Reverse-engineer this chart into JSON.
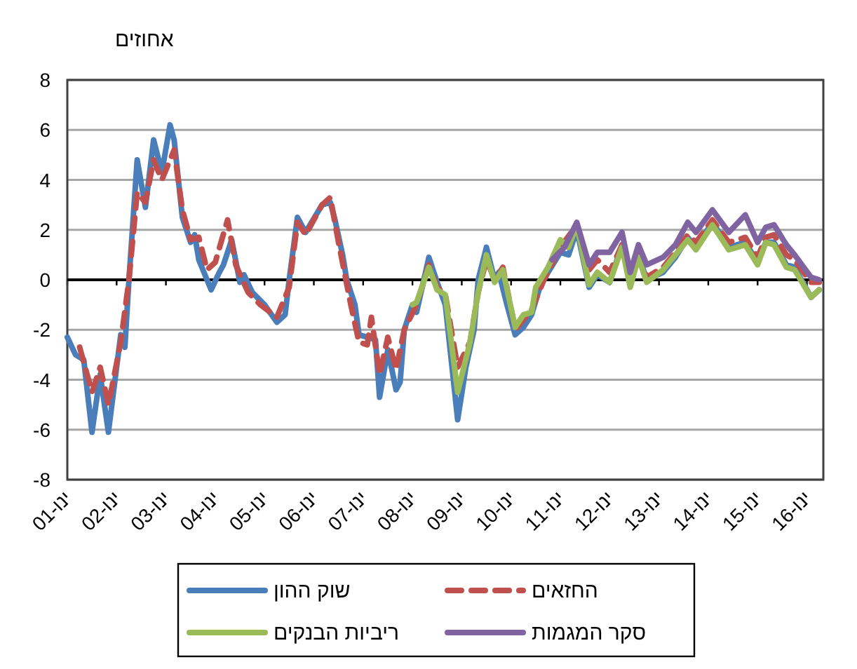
{
  "chart_data": {
    "type": "line",
    "ylabel": "אחוזים",
    "xlim": [
      "2001-01",
      "2016-05"
    ],
    "xticks": [
      {
        "value": "2001-01",
        "label": "ינו-01"
      },
      {
        "value": "2002-01",
        "label": "ינו-02"
      },
      {
        "value": "2003-01",
        "label": "ינו-03"
      },
      {
        "value": "2004-01",
        "label": "ינו-04"
      },
      {
        "value": "2005-01",
        "label": "ינו-05"
      },
      {
        "value": "2006-01",
        "label": "ינו-06"
      },
      {
        "value": "2007-01",
        "label": "ינו-07"
      },
      {
        "value": "2008-01",
        "label": "ינו-08"
      },
      {
        "value": "2009-01",
        "label": "ינו-09"
      },
      {
        "value": "2010-01",
        "label": "ינו-10"
      },
      {
        "value": "2011-01",
        "label": "ינו-11"
      },
      {
        "value": "2012-01",
        "label": "ינו-12"
      },
      {
        "value": "2013-01",
        "label": "ינו-13"
      },
      {
        "value": "2014-01",
        "label": "ינו-14"
      },
      {
        "value": "2015-01",
        "label": "ינו-15"
      },
      {
        "value": "2016-01",
        "label": "ינו-16"
      }
    ],
    "ylim": [
      -8,
      8
    ],
    "yticks": [
      -8,
      -6,
      -4,
      -2,
      0,
      2,
      4,
      6,
      8
    ],
    "grid": "y",
    "legend": "bottom",
    "series": [
      {
        "name": "שוק ההון",
        "color": "#4a7ebb",
        "line_style": "solid",
        "x": [
          "2001-01",
          "2001-03",
          "2001-05",
          "2001-07",
          "2001-09",
          "2001-11",
          "2002-02",
          "2002-03",
          "2002-04",
          "2002-06",
          "2002-08",
          "2002-10",
          "2002-12",
          "2003-02",
          "2003-03",
          "2003-05",
          "2003-07",
          "2003-08",
          "2003-09",
          "2003-12",
          "2004-02",
          "2004-03",
          "2004-05",
          "2004-07",
          "2004-08",
          "2004-10",
          "2005-01",
          "2005-04",
          "2005-06",
          "2005-07",
          "2005-09",
          "2005-11",
          "2006-03",
          "2006-05",
          "2006-06",
          "2006-08",
          "2006-09",
          "2006-11",
          "2006-12",
          "2007-02",
          "2007-04",
          "2007-05",
          "2007-07",
          "2007-09",
          "2007-10",
          "2007-11",
          "2008-01",
          "2008-02",
          "2008-05",
          "2008-07",
          "2008-09",
          "2008-12",
          "2009-02",
          "2009-04",
          "2009-05",
          "2009-07",
          "2009-09",
          "2009-10",
          "2009-12",
          "2010-02",
          "2010-04",
          "2010-06",
          "2010-08",
          "2010-10",
          "2011-01",
          "2011-03",
          "2011-05",
          "2011-08",
          "2011-10",
          "2012-01",
          "2012-04",
          "2012-06",
          "2012-08",
          "2012-10",
          "2013-02",
          "2013-05",
          "2013-08",
          "2013-10",
          "2014-02",
          "2014-06",
          "2014-10",
          "2015-01",
          "2015-03",
          "2015-05",
          "2015-08",
          "2015-10",
          "2016-02",
          "2016-04"
        ],
        "values": [
          -2.3,
          -3.0,
          -3.2,
          -6.1,
          -3.8,
          -6.1,
          -2.2,
          -2.7,
          0,
          4.8,
          2.9,
          5.6,
          4.3,
          6.2,
          5.6,
          2.5,
          1.5,
          1.8,
          0.8,
          -0.4,
          0.3,
          0.6,
          1.6,
          -0.1,
          0.2,
          -0.5,
          -1.0,
          -1.7,
          -1.4,
          0,
          2.5,
          1.9,
          3.0,
          3.1,
          2.5,
          1.0,
          0,
          -1.0,
          -2.2,
          -2.3,
          -2.4,
          -4.7,
          -2.8,
          -4.4,
          -4.1,
          -2.0,
          -1.0,
          -1.3,
          0.9,
          -0.1,
          -1.0,
          -5.6,
          -3.5,
          -2.0,
          0,
          1.3,
          0.0,
          0.3,
          -1.0,
          -2.2,
          -1.9,
          -1.4,
          -0.3,
          0.3,
          1.1,
          1.0,
          2.0,
          -0.3,
          0.2,
          -0.1,
          1.4,
          -0.2,
          1.0,
          0.0,
          0.3,
          0.9,
          1.7,
          1.3,
          2.3,
          1.3,
          1.5,
          0.7,
          1.5,
          1.5,
          0.6,
          0.5,
          -0.7,
          -0.4
        ]
      },
      {
        "name": "החזאים",
        "color": "#c0504d",
        "line_style": "dashed",
        "x": [
          "2001-04",
          "2001-07",
          "2001-09",
          "2001-11",
          "2002-02",
          "2002-04",
          "2002-06",
          "2002-08",
          "2002-10",
          "2002-12",
          "2003-03",
          "2003-05",
          "2003-07",
          "2003-09",
          "2003-11",
          "2004-01",
          "2004-04",
          "2004-06",
          "2004-09",
          "2004-12",
          "2005-04",
          "2005-07",
          "2005-09",
          "2005-11",
          "2006-03",
          "2006-05",
          "2006-07",
          "2006-10",
          "2006-12",
          "2007-02",
          "2007-03",
          "2007-05",
          "2007-07",
          "2007-09",
          "2007-11",
          "2008-02",
          "2008-05",
          "2008-07",
          "2008-09",
          "2008-12",
          "2009-03",
          "2009-05",
          "2009-07",
          "2009-09",
          "2009-11",
          "2010-02",
          "2010-06",
          "2010-09",
          "2011-01",
          "2011-05",
          "2011-08",
          "2011-10",
          "2012-01",
          "2012-04",
          "2012-06",
          "2012-08",
          "2012-10",
          "2013-02",
          "2013-05",
          "2013-08",
          "2013-10",
          "2014-02",
          "2014-06",
          "2014-10",
          "2015-01",
          "2015-03",
          "2015-05",
          "2015-08",
          "2015-10",
          "2016-02",
          "2016-04"
        ],
        "values": [
          -2.7,
          -4.5,
          -3.5,
          -5.0,
          -2.5,
          0,
          3.5,
          3.1,
          4.8,
          4.0,
          5.2,
          2.8,
          1.6,
          1.7,
          0.4,
          0.7,
          2.4,
          0.6,
          -0.5,
          -1.0,
          -1.5,
          -0.3,
          2.3,
          1.8,
          3.0,
          3.3,
          1.5,
          -1.0,
          -2.5,
          -2.6,
          -1.5,
          -3.8,
          -2.3,
          -3.6,
          -2.0,
          -1.0,
          0.6,
          -0.3,
          -0.6,
          -3.5,
          -2.5,
          -0.5,
          0.8,
          0.0,
          0.5,
          -2.0,
          -1.2,
          0.0,
          1.3,
          2.2,
          0.4,
          0.8,
          0.3,
          1.4,
          0.0,
          1.0,
          0.1,
          0.5,
          1.1,
          1.8,
          1.5,
          2.4,
          1.5,
          1.7,
          0.9,
          1.7,
          1.8,
          1.0,
          0.8,
          -0.1,
          -0.1
        ]
      },
      {
        "name": "ריביות הבנקים",
        "color": "#9bbb59",
        "line_style": "solid",
        "x": [
          "2008-01",
          "2008-02",
          "2008-05",
          "2008-07",
          "2008-09",
          "2008-12",
          "2009-03",
          "2009-05",
          "2009-07",
          "2009-09",
          "2009-11",
          "2010-02",
          "2010-04",
          "2010-06",
          "2010-07",
          "2010-10",
          "2011-01",
          "2011-03",
          "2011-05",
          "2011-08",
          "2011-10",
          "2012-01",
          "2012-04",
          "2012-06",
          "2012-08",
          "2012-10",
          "2013-02",
          "2013-05",
          "2013-08",
          "2013-10",
          "2014-02",
          "2014-06",
          "2014-10",
          "2015-01",
          "2015-03",
          "2015-05",
          "2015-08",
          "2015-10",
          "2016-02",
          "2016-04"
        ],
        "values": [
          -1.0,
          -0.9,
          0.5,
          -0.4,
          -0.6,
          -4.5,
          -2.5,
          -0.5,
          1.0,
          -0.1,
          0.4,
          -1.9,
          -1.4,
          -1.3,
          -0.3,
          0.5,
          1.6,
          1.3,
          2.2,
          -0.2,
          0.3,
          -0.1,
          1.3,
          -0.3,
          0.9,
          -0.1,
          0.4,
          1.0,
          1.6,
          1.2,
          2.2,
          1.2,
          1.4,
          0.6,
          1.5,
          1.4,
          0.5,
          0.4,
          -0.7,
          -0.4
        ]
      },
      {
        "name": "סקר המגמות",
        "color": "#8064a2",
        "line_style": "solid",
        "x": [
          "2010-11",
          "2011-02",
          "2011-05",
          "2011-08",
          "2011-10",
          "2012-01",
          "2012-04",
          "2012-06",
          "2012-08",
          "2012-10",
          "2013-02",
          "2013-05",
          "2013-08",
          "2013-10",
          "2014-02",
          "2014-06",
          "2014-10",
          "2015-01",
          "2015-03",
          "2015-05",
          "2015-08",
          "2015-10",
          "2016-02",
          "2016-04"
        ],
        "values": [
          0.8,
          1.3,
          2.3,
          0.6,
          1.1,
          1.1,
          1.9,
          0.3,
          1.4,
          0.6,
          0.9,
          1.4,
          2.3,
          1.9,
          2.8,
          1.9,
          2.6,
          1.5,
          2.1,
          2.2,
          1.4,
          1.0,
          0.1,
          0.0
        ]
      }
    ]
  }
}
